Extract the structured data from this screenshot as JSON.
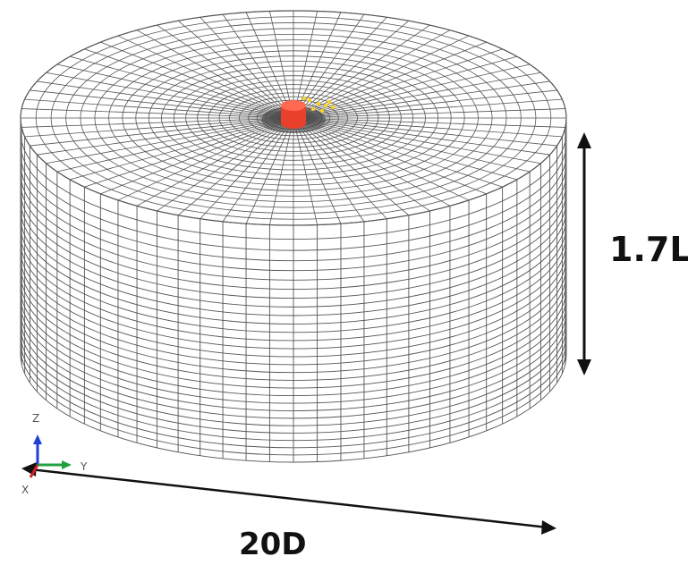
{
  "figure": {
    "height_label": "1.7L",
    "diameter_label": "20D",
    "axes": {
      "z": "Z",
      "y": "Y",
      "x": "X"
    },
    "colors": {
      "mesh": "#555555",
      "pile": "#e8402a",
      "pile_highlight": "#ffd21f",
      "axis_z": "#1f3fd6",
      "axis_y": "#20a040",
      "axis_x": "#d02020"
    }
  }
}
